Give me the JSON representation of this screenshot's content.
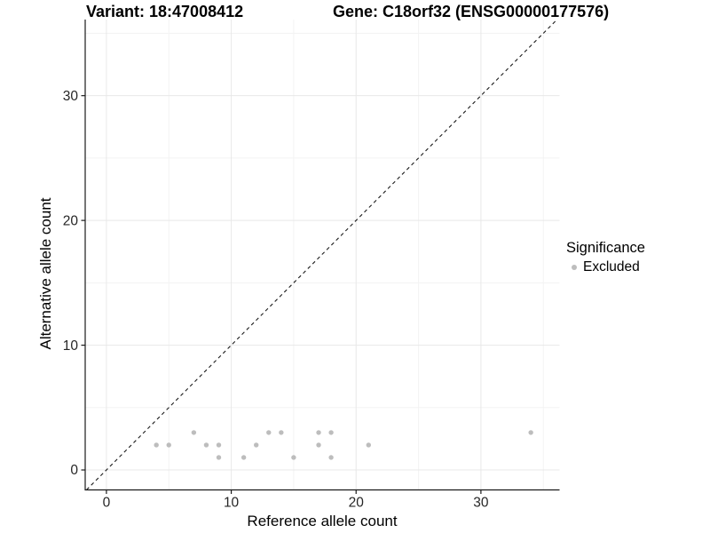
{
  "header": {
    "variant_title": "Variant: 18:47008412",
    "gene_title": "Gene: C18orf32 (ENSG00000177576)"
  },
  "chart_data": {
    "type": "scatter",
    "xlabel": "Reference allele count",
    "ylabel": "Alternative allele count",
    "xlim": [
      -1.7,
      36.3
    ],
    "ylim": [
      -1.6,
      36.1
    ],
    "x_major_ticks": [
      0,
      10,
      20,
      30
    ],
    "y_major_ticks": [
      0,
      10,
      20,
      30
    ],
    "x_minor_gridlines": [
      5,
      15,
      25,
      35
    ],
    "y_minor_gridlines": [
      5,
      15,
      25,
      35
    ],
    "grid": "major+minor",
    "identity_line": {
      "slope": 1,
      "intercept": 0,
      "linestyle": "dashed"
    },
    "series": [
      {
        "name": "Excluded",
        "marker": "circle",
        "color": "#bdbdbd",
        "points": [
          {
            "x": 4,
            "y": 2
          },
          {
            "x": 5,
            "y": 2
          },
          {
            "x": 7,
            "y": 3
          },
          {
            "x": 8,
            "y": 2
          },
          {
            "x": 9,
            "y": 2
          },
          {
            "x": 9,
            "y": 1
          },
          {
            "x": 11,
            "y": 1
          },
          {
            "x": 12,
            "y": 2
          },
          {
            "x": 13,
            "y": 3
          },
          {
            "x": 14,
            "y": 3
          },
          {
            "x": 15,
            "y": 1
          },
          {
            "x": 17,
            "y": 2
          },
          {
            "x": 17,
            "y": 3
          },
          {
            "x": 18,
            "y": 1
          },
          {
            "x": 18,
            "y": 3
          },
          {
            "x": 21,
            "y": 2
          },
          {
            "x": 34,
            "y": 3
          }
        ]
      }
    ],
    "legend": {
      "position": "right",
      "title": "Significance",
      "entries": [
        {
          "label": "Excluded",
          "color": "#bdbdbd"
        }
      ]
    }
  },
  "colors": {
    "background": "#ffffff",
    "point": "#bdbdbd",
    "axis_line": "#1a1a1a",
    "grid_major": "#e8e8e8",
    "grid_minor": "#f3f3f3",
    "tick_text": "#262626",
    "identity_line": "#1a1a1a"
  }
}
